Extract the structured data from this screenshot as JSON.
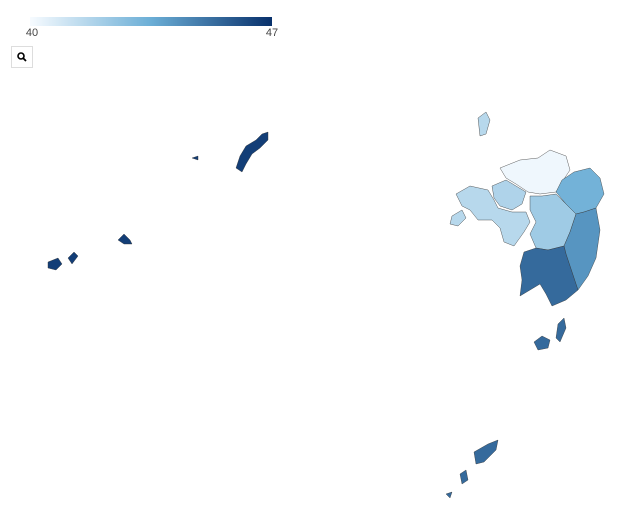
{
  "map": {
    "colorbar": {
      "min": 40,
      "max": 47,
      "colors": [
        "#f7fbff",
        "#6baed6",
        "#08306b"
      ]
    },
    "regions": [
      {
        "value": 40.2
      },
      {
        "value": 41.8
      },
      {
        "value": 41.6
      },
      {
        "value": 42.2
      },
      {
        "value": 43.3
      },
      {
        "value": 44.2
      },
      {
        "value": 45.4
      },
      {
        "value": 46.6
      }
    ]
  }
}
